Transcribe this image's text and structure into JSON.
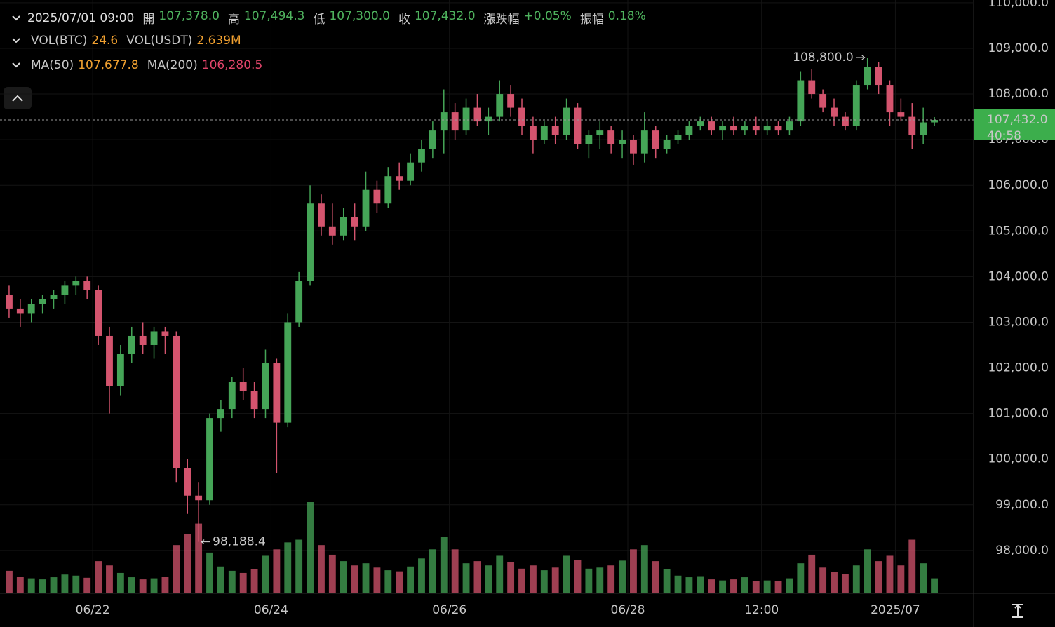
{
  "ohlc_bar": {
    "time": "2025/07/01 09:00",
    "items": [
      {
        "label": "開",
        "value": "107,378.0",
        "color": "#4fb35e"
      },
      {
        "label": "高",
        "value": "107,494.3",
        "color": "#4fb35e"
      },
      {
        "label": "低",
        "value": "107,300.0",
        "color": "#4fb35e"
      },
      {
        "label": "收",
        "value": "107,432.0",
        "color": "#4fb35e"
      },
      {
        "label": "漲跌幅",
        "value": "+0.05%",
        "color": "#4fb35e"
      },
      {
        "label": "振幅",
        "value": "0.18%",
        "color": "#4fb35e"
      }
    ]
  },
  "volume_bar": {
    "items": [
      {
        "label": "VOL(BTC)",
        "value": "24.6",
        "color": "#f0a030"
      },
      {
        "label": "VOL(USDT)",
        "value": "2.639M",
        "color": "#f0a030"
      }
    ]
  },
  "ma_bar": {
    "items": [
      {
        "label": "MA(50)",
        "value": "107,677.8",
        "color": "#f0a030"
      },
      {
        "label": "MA(200)",
        "value": "106,280.5",
        "color": "#e0456a"
      }
    ]
  },
  "chart_data": {
    "type": "candlestick",
    "up_color": "#45a557",
    "down_color": "#d4546e",
    "grid": true,
    "xlim": [
      0,
      84
    ],
    "xticks": [
      {
        "value": 8,
        "label": "06/22"
      },
      {
        "value": 24,
        "label": "06/24"
      },
      {
        "value": 40,
        "label": "06/26"
      },
      {
        "value": 56,
        "label": "06/28"
      },
      {
        "value": 68,
        "label": "12:00"
      },
      {
        "value": 80,
        "label": "2025/07"
      }
    ],
    "ylim": [
      97060,
      110060
    ],
    "yticks": [
      {
        "value": 98000,
        "label": "98,000.0"
      },
      {
        "value": 99000,
        "label": "99,000.0"
      },
      {
        "value": 100000,
        "label": "100,000.0"
      },
      {
        "value": 101000,
        "label": "101,000.0"
      },
      {
        "value": 102000,
        "label": "102,000.0"
      },
      {
        "value": 103000,
        "label": "103,000.0"
      },
      {
        "value": 104000,
        "label": "104,000.0"
      },
      {
        "value": 105000,
        "label": "105,000.0"
      },
      {
        "value": 106000,
        "label": "106,000.0"
      },
      {
        "value": 107000,
        "label": "107,000.0"
      },
      {
        "value": 108000,
        "label": "108,000.0"
      },
      {
        "value": 109000,
        "label": "109,000.0"
      },
      {
        "value": 110000,
        "label": "110,000.0"
      }
    ],
    "open": [
      103600,
      103300,
      103200,
      103400,
      103500,
      103600,
      103800,
      103900,
      103700,
      102700,
      101600,
      102300,
      102700,
      102500,
      102800,
      102700,
      99800,
      99200,
      99100,
      100900,
      101100,
      101700,
      101500,
      101100,
      102100,
      100800,
      103000,
      103900,
      105600,
      105100,
      104900,
      105300,
      105100,
      105900,
      105600,
      106200,
      106100,
      106500,
      106800,
      107200,
      107600,
      107200,
      107700,
      107400,
      107500,
      108000,
      107700,
      107300,
      107000,
      107300,
      107100,
      107700,
      106900,
      107100,
      107200,
      106900,
      107000,
      106700,
      107200,
      106800,
      107000,
      107100,
      107300,
      107400,
      107200,
      107300,
      107200,
      107300,
      107200,
      107300,
      107200,
      107400,
      108300,
      108000,
      107700,
      107500,
      107300,
      108200,
      108600,
      108200,
      107600,
      107500,
      107100,
      107378
    ],
    "high": [
      103800,
      103500,
      103500,
      103600,
      103700,
      103900,
      104000,
      104000,
      103800,
      102900,
      102500,
      102900,
      103000,
      102900,
      102900,
      102800,
      100000,
      99500,
      101000,
      101300,
      101800,
      102000,
      101700,
      102400,
      102200,
      103200,
      104100,
      106000,
      105800,
      105600,
      105500,
      105600,
      106300,
      106100,
      106400,
      106500,
      106700,
      107000,
      107400,
      108100,
      107800,
      107900,
      108000,
      107700,
      108300,
      108200,
      107900,
      107500,
      107400,
      107500,
      107900,
      107800,
      107200,
      107400,
      107300,
      107200,
      107100,
      107600,
      107300,
      107100,
      107200,
      107400,
      107500,
      107500,
      107400,
      107500,
      107400,
      107500,
      107400,
      107400,
      107500,
      108500,
      108550,
      108100,
      107900,
      107600,
      108300,
      108800,
      108700,
      108300,
      107900,
      107800,
      107700,
      107494.3
    ],
    "low": [
      103100,
      102900,
      103000,
      103200,
      103300,
      103400,
      103600,
      103500,
      102500,
      101000,
      101400,
      102100,
      102300,
      102200,
      102300,
      99500,
      98800,
      98188.4,
      99000,
      100600,
      100900,
      101300,
      100900,
      100900,
      99700,
      100700,
      102900,
      103800,
      104900,
      104700,
      104800,
      104800,
      105000,
      105400,
      105500,
      105900,
      106000,
      106300,
      106600,
      106700,
      107000,
      107100,
      107300,
      107100,
      107400,
      107500,
      107100,
      106700,
      106900,
      106900,
      107000,
      106800,
      106600,
      106800,
      106700,
      106600,
      106450,
      106500,
      106600,
      106700,
      106900,
      107000,
      107200,
      107100,
      107000,
      107100,
      107100,
      107100,
      107100,
      107100,
      107100,
      107300,
      107900,
      107600,
      107300,
      107200,
      107200,
      108100,
      108000,
      107300,
      107400,
      106800,
      106900,
      107300
    ],
    "close": [
      103300,
      103200,
      103400,
      103500,
      103600,
      103800,
      103900,
      103700,
      102700,
      101600,
      102300,
      102700,
      102500,
      102800,
      102700,
      99800,
      99200,
      99100,
      100900,
      101100,
      101700,
      101500,
      101100,
      102100,
      100800,
      103000,
      103900,
      105600,
      105100,
      104900,
      105300,
      105100,
      105900,
      105600,
      106200,
      106100,
      106500,
      106800,
      107200,
      107600,
      107200,
      107700,
      107400,
      107500,
      108000,
      107700,
      107300,
      107000,
      107300,
      107100,
      107700,
      106900,
      107100,
      107200,
      106900,
      107000,
      106700,
      107200,
      106800,
      107000,
      107100,
      107300,
      107400,
      107200,
      107300,
      107200,
      107300,
      107200,
      107300,
      107200,
      107400,
      108300,
      108000,
      107700,
      107500,
      107300,
      108200,
      108600,
      108200,
      107600,
      107500,
      107100,
      107378,
      107432
    ],
    "volume": [
      420,
      310,
      280,
      260,
      300,
      350,
      330,
      290,
      600,
      520,
      380,
      300,
      260,
      280,
      310,
      900,
      1100,
      1300,
      760,
      500,
      420,
      380,
      450,
      700,
      820,
      950,
      1000,
      1700,
      900,
      720,
      600,
      520,
      560,
      480,
      430,
      410,
      500,
      650,
      820,
      1050,
      820,
      560,
      600,
      520,
      700,
      580,
      460,
      520,
      430,
      480,
      700,
      620,
      460,
      480,
      520,
      610,
      820,
      900,
      600,
      450,
      330,
      300,
      320,
      260,
      240,
      260,
      300,
      230,
      240,
      230,
      280,
      560,
      720,
      480,
      400,
      360,
      520,
      820,
      600,
      700,
      520,
      1000,
      560,
      280
    ],
    "annotations": [
      {
        "value": 108800,
        "label": "108,800.0"
      },
      {
        "value": 98188.4,
        "label": "98,188.4"
      }
    ],
    "last_price": {
      "value": 107432,
      "label": "107,432.0",
      "color": "#3cae4c"
    },
    "countdown": "40:58"
  }
}
